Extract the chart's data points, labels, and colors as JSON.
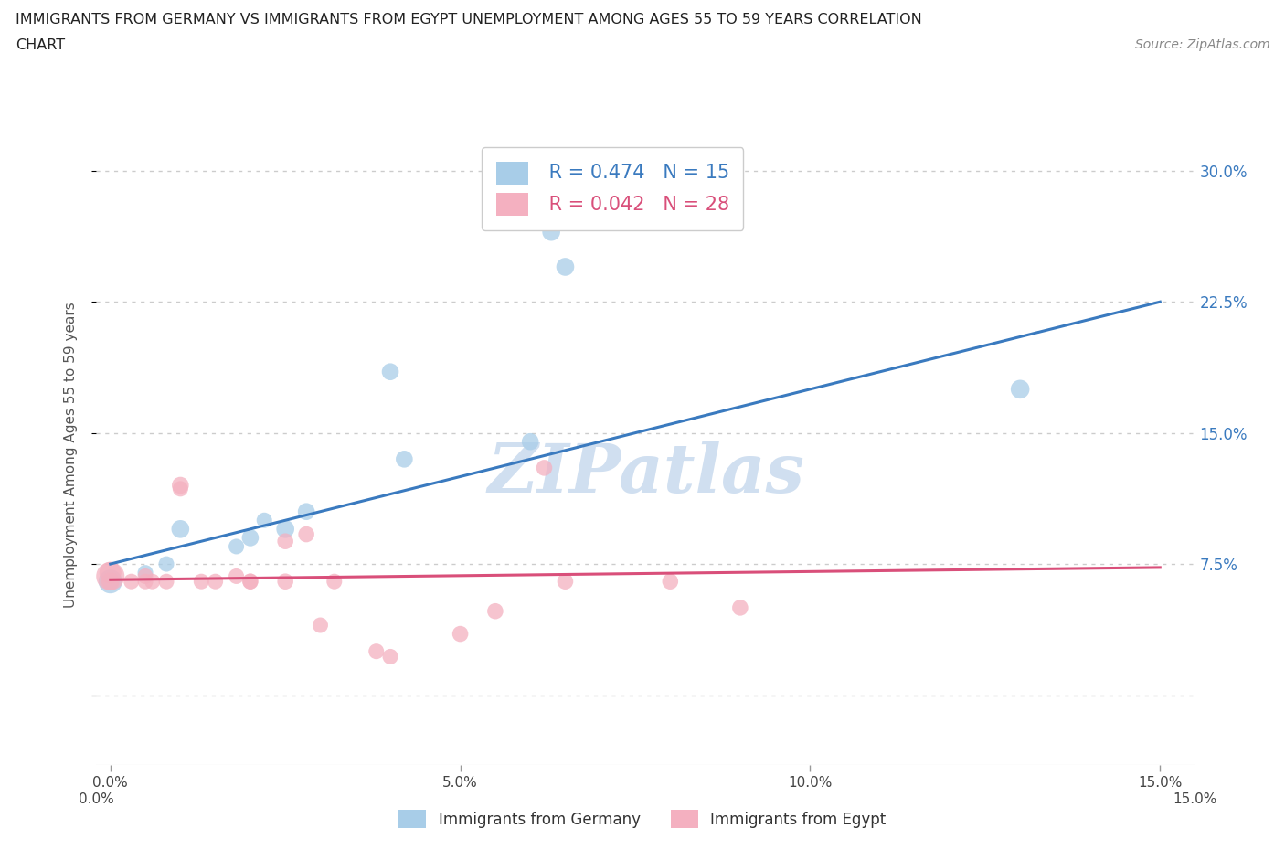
{
  "title_line1": "IMMIGRANTS FROM GERMANY VS IMMIGRANTS FROM EGYPT UNEMPLOYMENT AMONG AGES 55 TO 59 YEARS CORRELATION",
  "title_line2": "CHART",
  "source": "Source: ZipAtlas.com",
  "ylabel": "Unemployment Among Ages 55 to 59 years",
  "xlim": [
    -0.002,
    0.155
  ],
  "ylim": [
    -0.04,
    0.315
  ],
  "yticks": [
    0.0,
    0.075,
    0.15,
    0.225,
    0.3
  ],
  "ytick_labels": [
    "",
    "7.5%",
    "15.0%",
    "22.5%",
    "30.0%"
  ],
  "xticks": [
    0.0,
    0.05,
    0.1,
    0.15
  ],
  "xtick_labels": [
    "0.0%",
    "5.0%",
    "10.0%",
    "15.0%"
  ],
  "germany_color": "#a8cde8",
  "egypt_color": "#f4b0c0",
  "germany_line_color": "#3a7abf",
  "egypt_line_color": "#d94f7a",
  "germany_R": "0.474",
  "germany_N": "15",
  "egypt_R": "0.042",
  "egypt_N": "28",
  "watermark": "ZIPatlas",
  "watermark_color": "#d0dff0",
  "legend_label_germany": "Immigrants from Germany",
  "legend_label_egypt": "Immigrants from Egypt",
  "germany_x": [
    0.0,
    0.005,
    0.008,
    0.01,
    0.018,
    0.02,
    0.022,
    0.025,
    0.028,
    0.04,
    0.042,
    0.06,
    0.063,
    0.065,
    0.13
  ],
  "germany_y": [
    0.065,
    0.07,
    0.075,
    0.095,
    0.085,
    0.09,
    0.1,
    0.095,
    0.105,
    0.185,
    0.135,
    0.145,
    0.265,
    0.245,
    0.175
  ],
  "germany_sizes": [
    350,
    150,
    150,
    200,
    150,
    180,
    150,
    200,
    180,
    180,
    180,
    180,
    200,
    200,
    220
  ],
  "egypt_x": [
    0.0,
    0.0,
    0.0,
    0.003,
    0.005,
    0.005,
    0.006,
    0.008,
    0.01,
    0.01,
    0.013,
    0.015,
    0.018,
    0.02,
    0.02,
    0.025,
    0.025,
    0.028,
    0.03,
    0.032,
    0.038,
    0.04,
    0.05,
    0.055,
    0.062,
    0.065,
    0.08,
    0.09
  ],
  "egypt_y": [
    0.068,
    0.07,
    0.065,
    0.065,
    0.065,
    0.068,
    0.065,
    0.065,
    0.12,
    0.118,
    0.065,
    0.065,
    0.068,
    0.065,
    0.065,
    0.065,
    0.088,
    0.092,
    0.04,
    0.065,
    0.025,
    0.022,
    0.035,
    0.048,
    0.13,
    0.065,
    0.065,
    0.05
  ],
  "egypt_sizes": [
    500,
    300,
    200,
    150,
    150,
    150,
    150,
    150,
    180,
    150,
    150,
    150,
    150,
    160,
    150,
    160,
    160,
    160,
    150,
    150,
    150,
    150,
    160,
    160,
    160,
    160,
    160,
    160
  ],
  "g_line_x0": 0.0,
  "g_line_y0": 0.075,
  "g_line_x1": 0.15,
  "g_line_y1": 0.225,
  "e_line_x0": 0.0,
  "e_line_y0": 0.066,
  "e_line_x1": 0.15,
  "e_line_y1": 0.073
}
